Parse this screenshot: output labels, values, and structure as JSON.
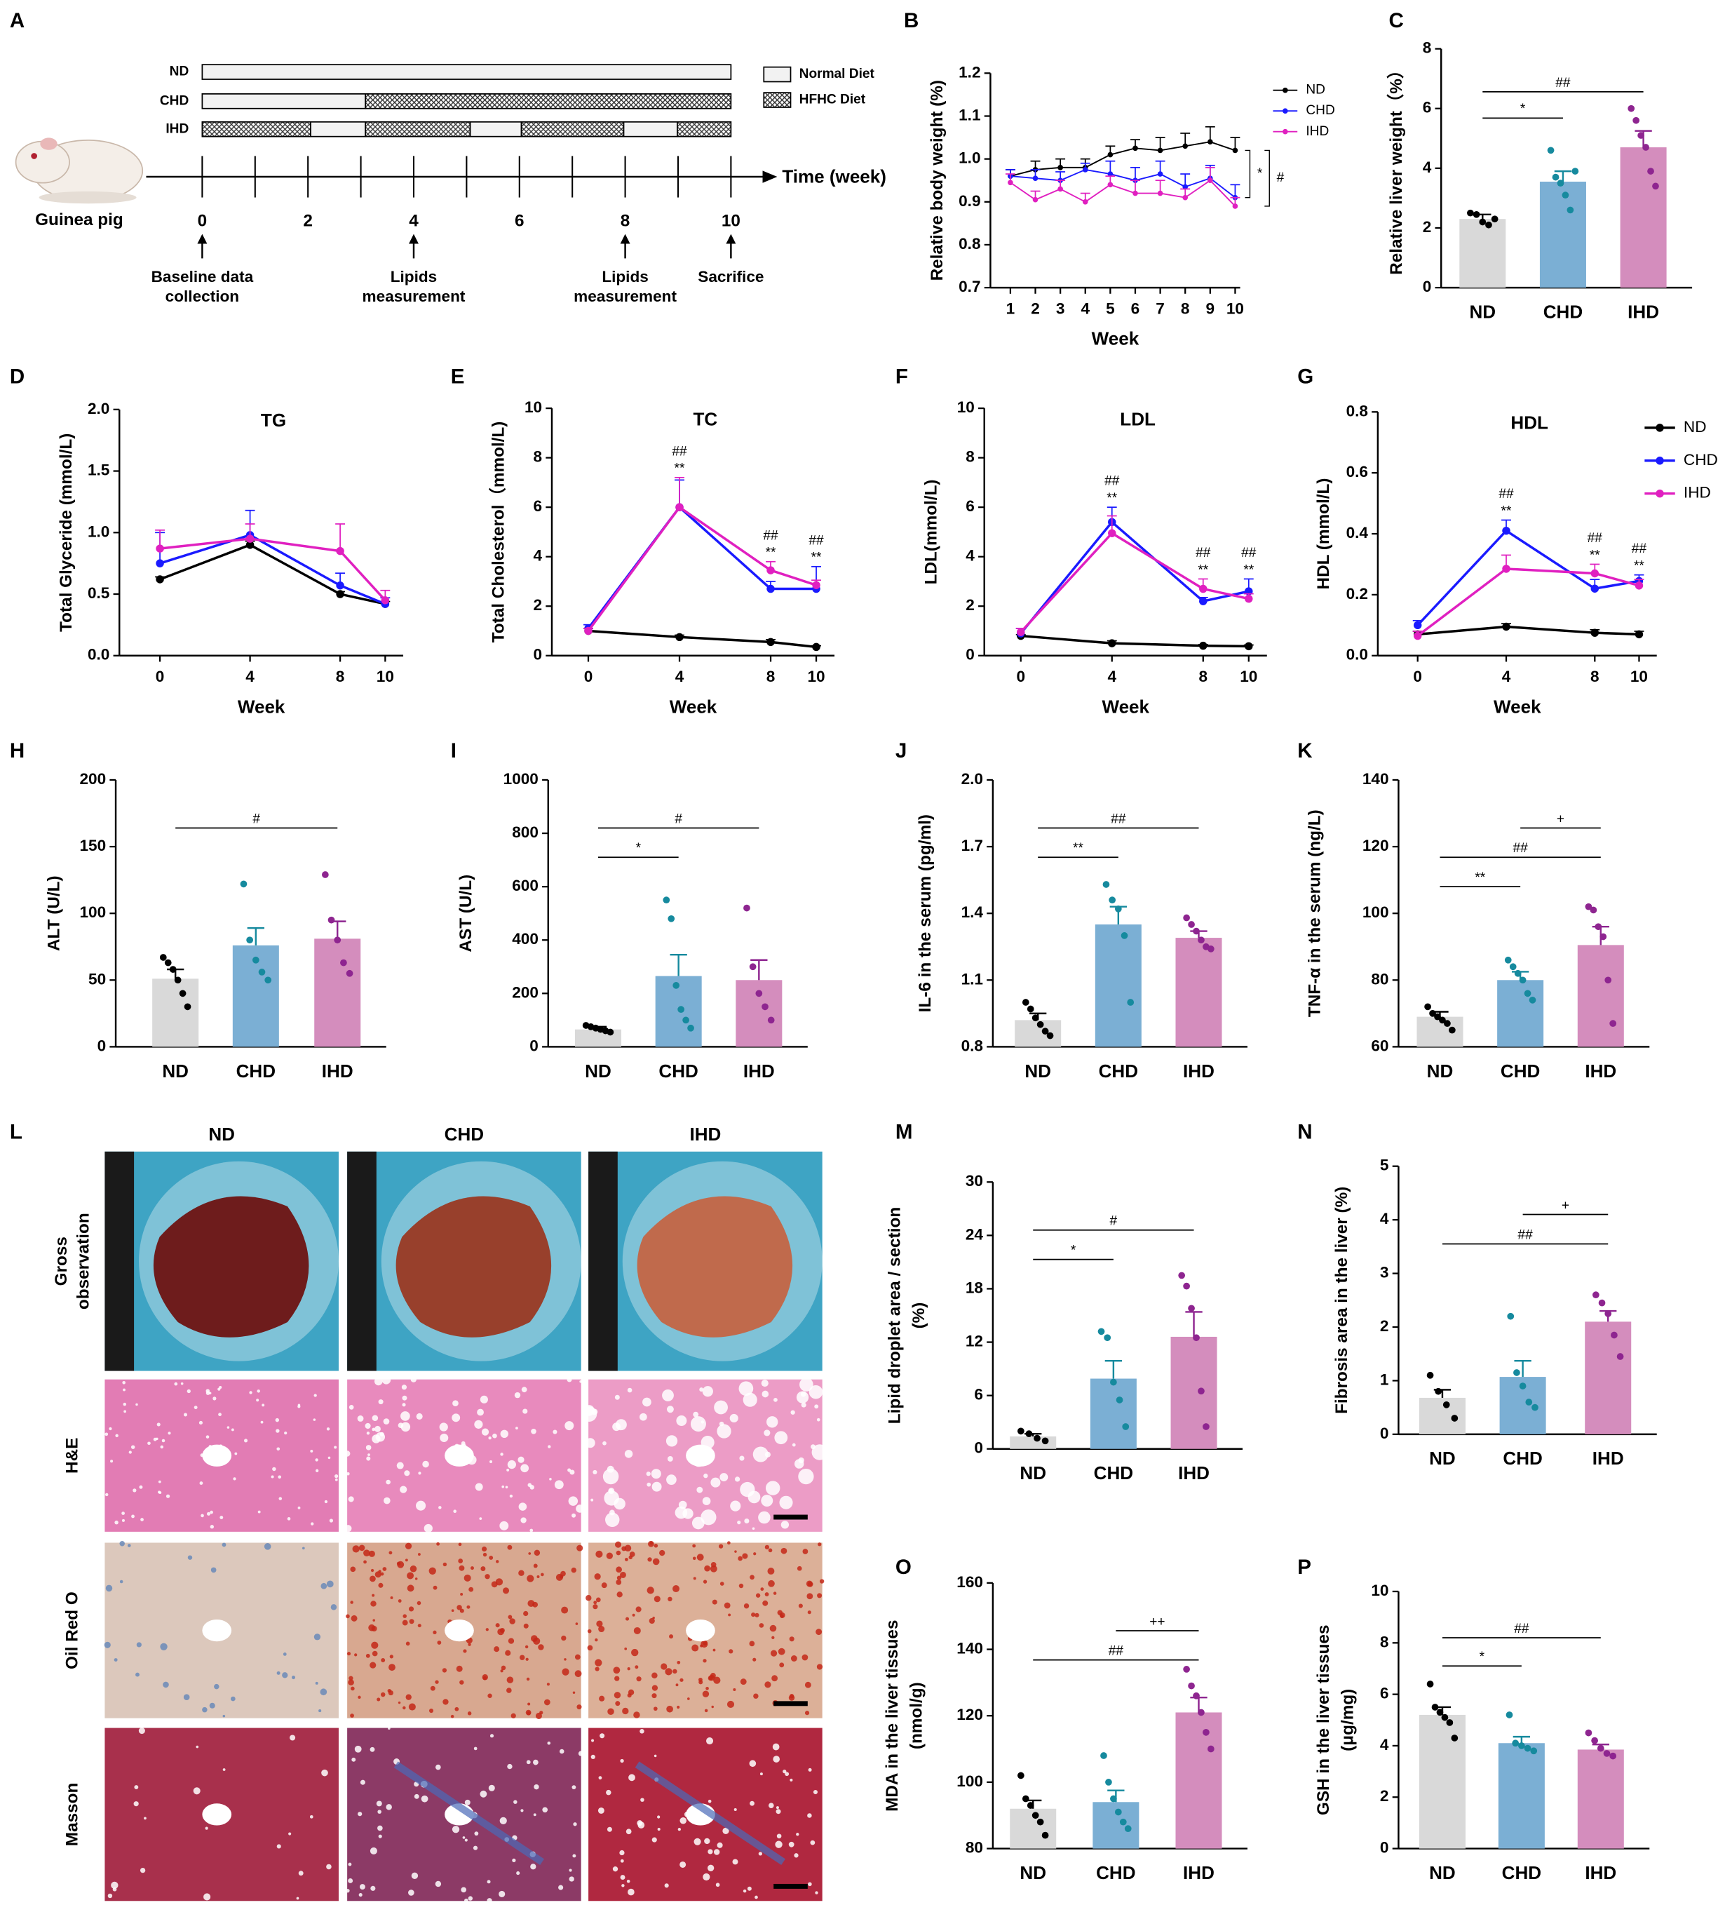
{
  "timeline": {
    "label": "A",
    "rows": [
      "ND",
      "CHD",
      "IHD"
    ],
    "legend": [
      "Normal Diet",
      "HFHC Diet"
    ],
    "axis_label": "Time (week)",
    "ticks": [
      0,
      2,
      4,
      6,
      8,
      10
    ],
    "events": [
      {
        "week": 0,
        "lines": [
          "Baseline data",
          "collection"
        ]
      },
      {
        "week": 4,
        "lines": [
          "Lipids",
          "measurement"
        ]
      },
      {
        "week": 8,
        "lines": [
          "Lipids",
          "measurement"
        ]
      },
      {
        "week": 10,
        "lines": [
          "Sacrifice"
        ]
      }
    ],
    "animal": "Guinea pig"
  },
  "histology": {
    "label": "L",
    "columns": [
      "ND",
      "CHD",
      "IHD"
    ],
    "rows": [
      [
        "Gross",
        "observation"
      ],
      [
        "H&E"
      ],
      [
        "Oil Red O"
      ],
      [
        "Masson"
      ]
    ]
  },
  "chart_data": [
    {
      "label": "B",
      "type": "line",
      "x": [
        1,
        2,
        3,
        4,
        5,
        6,
        7,
        8,
        9,
        10
      ],
      "xlim": [
        0.2,
        10.2
      ],
      "xticks": [
        1,
        2,
        3,
        4,
        5,
        6,
        7,
        8,
        9,
        10
      ],
      "ylim": [
        0.7,
        1.2
      ],
      "yticks": [
        0.7,
        0.8,
        0.9,
        {
          "value": 1,
          "label": "1.0"
        },
        1.1,
        1.2
      ],
      "xlabel": "Week",
      "ylabel": "Relative body weight (%)",
      "legend": "right",
      "side_marks": [
        "*",
        "#"
      ],
      "series": [
        {
          "name": "ND",
          "color": "#000000",
          "values": [
            0.96,
            0.975,
            0.98,
            0.98,
            1.01,
            1.025,
            1.02,
            1.03,
            1.04,
            1.02
          ],
          "errors": [
            0.015,
            0.02,
            0.02,
            0.02,
            0.02,
            0.02,
            0.03,
            0.03,
            0.035,
            0.03
          ]
        },
        {
          "name": "CHD",
          "color": "#1a1aff",
          "values": [
            0.96,
            0.955,
            0.95,
            0.975,
            0.965,
            0.95,
            0.965,
            0.935,
            0.955,
            0.91
          ],
          "errors": [
            0.015,
            0.02,
            0.02,
            0.015,
            0.03,
            0.03,
            0.03,
            0.03,
            0.03,
            0.03
          ]
        },
        {
          "name": "IHD",
          "color": "#e020c0",
          "values": [
            0.945,
            0.905,
            0.93,
            0.9,
            0.94,
            0.92,
            0.92,
            0.91,
            0.95,
            0.89
          ],
          "errors": [
            0.02,
            0.02,
            0.02,
            0.02,
            0.02,
            0.03,
            0.03,
            0.02,
            0.03,
            0.02
          ]
        }
      ]
    },
    {
      "label": "C",
      "type": "bar",
      "categories": [
        "ND",
        "CHD",
        "IHD"
      ],
      "values": [
        2.3,
        3.55,
        4.7
      ],
      "errors": [
        0.15,
        0.35,
        0.55
      ],
      "points": [
        [
          2.5,
          2.45,
          2.2,
          2.1,
          2.3
        ],
        [
          4.6,
          3.7,
          3.5,
          3.1,
          2.6,
          3.9
        ],
        [
          6.0,
          5.6,
          5.1,
          4.7,
          3.9,
          3.4
        ]
      ],
      "colors": [
        "#d9d9d9",
        "#7bafd4",
        "#d48dbd"
      ],
      "point_colors": [
        "#000000",
        "#168a9e",
        "#8e2590"
      ],
      "ylim": [
        0,
        8
      ],
      "yticks": [
        0,
        2,
        4,
        6,
        8
      ],
      "ylabel": "Relative liver weight（%）",
      "brackets": [
        {
          "from": 0,
          "to": 1,
          "label": "*"
        },
        {
          "from": 0,
          "to": 2,
          "label": "##"
        }
      ]
    },
    {
      "label": "D",
      "type": "line",
      "title": "TG",
      "x": [
        0,
        4,
        8,
        10
      ],
      "xlim": [
        -1.8,
        10.8
      ],
      "xticks": [
        0,
        4,
        8,
        10
      ],
      "ylim": [
        0,
        2
      ],
      "yticks": [
        {
          "value": 0,
          "label": "0.0"
        },
        0.5,
        {
          "value": 1,
          "label": "1.0"
        },
        1.5,
        {
          "value": 2,
          "label": "2.0"
        }
      ],
      "xlabel": "Week",
      "ylabel": "Total Glyceride (mmol/L)",
      "series": [
        {
          "name": "ND",
          "color": "#000000",
          "values": [
            0.62,
            0.9,
            0.5,
            0.42
          ],
          "errors": [
            0.02,
            0.03,
            0.02,
            0.02
          ]
        },
        {
          "name": "CHD",
          "color": "#1a1aff",
          "values": [
            0.75,
            0.98,
            0.57,
            0.42
          ],
          "errors": [
            0.25,
            0.2,
            0.1,
            0.05
          ]
        },
        {
          "name": "IHD",
          "color": "#e020c0",
          "values": [
            0.87,
            0.95,
            0.85,
            0.45
          ],
          "errors": [
            0.15,
            0.12,
            0.22,
            0.08
          ]
        }
      ]
    },
    {
      "label": "E",
      "type": "line",
      "title": "TC",
      "x": [
        0,
        4,
        8,
        10
      ],
      "xlim": [
        -1.6,
        10.8
      ],
      "xticks": [
        0,
        4,
        8,
        10
      ],
      "ylim": [
        0,
        10
      ],
      "yticks": [
        0,
        2,
        4,
        6,
        8,
        10
      ],
      "xlabel": "Week",
      "ylabel": "Total Cholesterol（mmol/L)",
      "annotations": [
        null,
        [
          "##",
          "**"
        ],
        [
          "##",
          "**"
        ],
        [
          "##",
          "**"
        ]
      ],
      "series": [
        {
          "name": "ND",
          "color": "#000000",
          "values": [
            1.0,
            0.75,
            0.55,
            0.35
          ],
          "errors": [
            0.1,
            0.08,
            0.1,
            0.05
          ]
        },
        {
          "name": "CHD",
          "color": "#1a1aff",
          "values": [
            1.1,
            6.0,
            2.7,
            2.7
          ],
          "errors": [
            0.15,
            1.1,
            0.3,
            0.9
          ]
        },
        {
          "name": "IHD",
          "color": "#e020c0",
          "values": [
            1.0,
            6.0,
            3.45,
            2.85
          ],
          "errors": [
            0.1,
            1.2,
            0.35,
            0.2
          ]
        }
      ]
    },
    {
      "label": "F",
      "type": "line",
      "title": "LDL",
      "x": [
        0,
        4,
        8,
        10
      ],
      "xlim": [
        -1.6,
        10.8
      ],
      "xticks": [
        0,
        4,
        8,
        10
      ],
      "ylim": [
        0,
        10
      ],
      "yticks": [
        0,
        2,
        4,
        6,
        8,
        10
      ],
      "xlabel": "Week",
      "ylabel": "LDL(mmol/L)",
      "annotations": [
        null,
        [
          "##",
          "**"
        ],
        [
          "##",
          "**"
        ],
        [
          "##",
          "**"
        ]
      ],
      "series": [
        {
          "name": "ND",
          "color": "#000000",
          "values": [
            0.8,
            0.5,
            0.4,
            0.38
          ],
          "errors": [
            0.05,
            0.1,
            0.05,
            0.05
          ]
        },
        {
          "name": "CHD",
          "color": "#1a1aff",
          "values": [
            0.9,
            5.4,
            2.2,
            2.6
          ],
          "errors": [
            0.2,
            0.6,
            0.15,
            0.5
          ]
        },
        {
          "name": "IHD",
          "color": "#e020c0",
          "values": [
            0.95,
            4.95,
            2.7,
            2.3
          ],
          "errors": [
            0.15,
            0.7,
            0.4,
            0.2
          ]
        }
      ]
    },
    {
      "label": "G",
      "type": "line",
      "title": "HDL",
      "x": [
        0,
        4,
        8,
        10
      ],
      "xlim": [
        -1.8,
        10.8
      ],
      "xticks": [
        0,
        4,
        8,
        10
      ],
      "ylim": [
        0,
        0.8
      ],
      "yticks": [
        {
          "value": 0,
          "label": "0.0"
        },
        0.2,
        0.4,
        0.6,
        0.8
      ],
      "xlabel": "Week",
      "ylabel": "HDL (mmol/L)",
      "legend": "right",
      "annotations": [
        null,
        [
          "##",
          "**"
        ],
        [
          "##",
          "**"
        ],
        [
          "##",
          "**"
        ]
      ],
      "series": [
        {
          "name": "ND",
          "color": "#000000",
          "values": [
            0.07,
            0.095,
            0.075,
            0.07
          ],
          "errors": [
            0.01,
            0.01,
            0.01,
            0.01
          ]
        },
        {
          "name": "CHD",
          "color": "#1a1aff",
          "values": [
            0.1,
            0.41,
            0.22,
            0.245
          ],
          "errors": [
            0.015,
            0.035,
            0.03,
            0.02
          ]
        },
        {
          "name": "IHD",
          "color": "#e020c0",
          "values": [
            0.065,
            0.285,
            0.27,
            0.23
          ],
          "errors": [
            0.015,
            0.045,
            0.03,
            0.02
          ]
        }
      ]
    },
    {
      "label": "H",
      "type": "bar",
      "categories": [
        "ND",
        "CHD",
        "IHD"
      ],
      "values": [
        51,
        76,
        81
      ],
      "errors": [
        7,
        13,
        13
      ],
      "points": [
        [
          67,
          63,
          58,
          50,
          40,
          30
        ],
        [
          122,
          80,
          65,
          56,
          50
        ],
        [
          129,
          95,
          80,
          63,
          55
        ]
      ],
      "colors": [
        "#d9d9d9",
        "#7bafd4",
        "#d48dbd"
      ],
      "point_colors": [
        "#000000",
        "#168a9e",
        "#8e2590"
      ],
      "ylim": [
        0,
        200
      ],
      "yticks": [
        0,
        50,
        100,
        150,
        200
      ],
      "ylabel": "ALT (U/L)",
      "brackets": [
        {
          "from": 0,
          "to": 2,
          "label": "#"
        }
      ]
    },
    {
      "label": "I",
      "type": "bar",
      "categories": [
        "ND",
        "CHD",
        "IHD"
      ],
      "values": [
        65,
        265,
        250
      ],
      "errors": [
        10,
        80,
        75
      ],
      "points": [
        [
          80,
          75,
          70,
          65,
          60,
          55
        ],
        [
          550,
          480,
          230,
          140,
          100,
          70
        ],
        [
          520,
          300,
          200,
          150,
          100
        ]
      ],
      "colors": [
        "#d9d9d9",
        "#7bafd4",
        "#d48dbd"
      ],
      "point_colors": [
        "#000000",
        "#168a9e",
        "#8e2590"
      ],
      "ylim": [
        0,
        1000
      ],
      "yticks": [
        0,
        200,
        400,
        600,
        800,
        1000
      ],
      "ylabel": "AST (U/L)",
      "brackets": [
        {
          "from": 0,
          "to": 1,
          "label": "*"
        },
        {
          "from": 0,
          "to": 2,
          "label": "#"
        }
      ]
    },
    {
      "label": "J",
      "type": "bar",
      "categories": [
        "ND",
        "CHD",
        "IHD"
      ],
      "values": [
        0.92,
        1.35,
        1.29
      ],
      "errors": [
        0.03,
        0.08,
        0.03
      ],
      "points": [
        [
          1.0,
          0.97,
          0.93,
          0.9,
          0.87,
          0.85
        ],
        [
          1.53,
          1.46,
          1.42,
          1.3,
          1.0
        ],
        [
          1.38,
          1.35,
          1.32,
          1.28,
          1.25,
          1.24
        ]
      ],
      "colors": [
        "#d9d9d9",
        "#7bafd4",
        "#d48dbd"
      ],
      "point_colors": [
        "#000000",
        "#168a9e",
        "#8e2590"
      ],
      "ylim": [
        0.8,
        2
      ],
      "yticks": [
        0.8,
        1.1,
        1.4,
        1.7,
        {
          "value": 2,
          "label": "2.0"
        }
      ],
      "ylabel": "IL-6 in the serum (pg/ml)",
      "brackets": [
        {
          "from": 0,
          "to": 1,
          "label": "**"
        },
        {
          "from": 0,
          "to": 2,
          "label": "##"
        }
      ]
    },
    {
      "label": "K",
      "type": "bar",
      "categories": [
        "ND",
        "CHD",
        "IHD"
      ],
      "values": [
        69,
        80,
        90.5
      ],
      "errors": [
        1.5,
        2.5,
        5.5
      ],
      "points": [
        [
          72,
          70,
          69,
          68,
          67,
          65
        ],
        [
          86,
          84,
          82,
          80,
          76,
          74
        ],
        [
          102,
          101,
          96,
          93,
          80,
          67
        ]
      ],
      "colors": [
        "#d9d9d9",
        "#7bafd4",
        "#d48dbd"
      ],
      "point_colors": [
        "#000000",
        "#168a9e",
        "#8e2590"
      ],
      "ylim": [
        60,
        140
      ],
      "yticks": [
        60,
        80,
        100,
        120,
        140
      ],
      "ylabel": "TNF-α in the serum (ng/L)",
      "brackets": [
        {
          "from": 0,
          "to": 1,
          "label": "**"
        },
        {
          "from": 0,
          "to": 2,
          "label": "##"
        },
        {
          "from": 1,
          "to": 2,
          "label": "+"
        }
      ]
    },
    {
      "label": "M",
      "type": "bar",
      "categories": [
        "ND",
        "CHD",
        "IHD"
      ],
      "values": [
        1.4,
        7.9,
        12.6
      ],
      "errors": [
        0.3,
        2,
        2.8
      ],
      "points": [
        [
          2.0,
          1.7,
          1.2,
          0.9
        ],
        [
          13.2,
          12.5,
          7.5,
          5.5,
          2.5
        ],
        [
          19.5,
          18.3,
          15.8,
          12.5,
          6.5,
          2.5
        ]
      ],
      "colors": [
        "#d9d9d9",
        "#7bafd4",
        "#d48dbd"
      ],
      "point_colors": [
        "#000000",
        "#168a9e",
        "#8e2590"
      ],
      "ylim": [
        0,
        30
      ],
      "yticks": [
        0,
        6,
        12,
        18,
        24,
        30
      ],
      "ylabel": [
        "Lipid droplet area / section",
        "(%)"
      ],
      "brackets": [
        {
          "from": 0,
          "to": 1,
          "label": "*"
        },
        {
          "from": 0,
          "to": 2,
          "label": "#"
        }
      ]
    },
    {
      "label": "N",
      "type": "bar",
      "categories": [
        "ND",
        "CHD",
        "IHD"
      ],
      "values": [
        0.68,
        1.07,
        2.1
      ],
      "errors": [
        0.15,
        0.3,
        0.2
      ],
      "points": [
        [
          1.1,
          0.8,
          0.55,
          0.3
        ],
        [
          2.2,
          1.15,
          0.9,
          0.6,
          0.5
        ],
        [
          2.6,
          2.45,
          2.25,
          1.85,
          1.45
        ]
      ],
      "colors": [
        "#d9d9d9",
        "#7bafd4",
        "#d48dbd"
      ],
      "point_colors": [
        "#000000",
        "#168a9e",
        "#8e2590"
      ],
      "ylim": [
        0,
        5
      ],
      "yticks": [
        0,
        1,
        2,
        3,
        4,
        5
      ],
      "ylabel": "Fibrosis area in the liver (%)",
      "brackets": [
        {
          "from": 0,
          "to": 2,
          "label": "##"
        },
        {
          "from": 1,
          "to": 2,
          "label": "+"
        }
      ]
    },
    {
      "label": "O",
      "type": "bar",
      "categories": [
        "ND",
        "CHD",
        "IHD"
      ],
      "values": [
        92,
        94,
        121
      ],
      "errors": [
        2.5,
        3.5,
        4.5
      ],
      "points": [
        [
          102,
          95,
          93,
          90,
          88,
          84
        ],
        [
          108,
          100,
          95,
          91,
          88,
          86
        ],
        [
          134,
          129,
          126,
          121,
          115,
          110
        ]
      ],
      "colors": [
        "#d9d9d9",
        "#7bafd4",
        "#d48dbd"
      ],
      "point_colors": [
        "#000000",
        "#168a9e",
        "#8e2590"
      ],
      "ylim": [
        80,
        160
      ],
      "yticks": [
        80,
        100,
        120,
        140,
        160
      ],
      "ylabel": [
        "MDA in the liver tissues",
        "(nmol/g)"
      ],
      "brackets": [
        {
          "from": 0,
          "to": 2,
          "label": "##"
        },
        {
          "from": 1,
          "to": 2,
          "label": "++"
        }
      ]
    },
    {
      "label": "P",
      "type": "bar",
      "categories": [
        "ND",
        "CHD",
        "IHD"
      ],
      "values": [
        5.2,
        4.1,
        3.85
      ],
      "errors": [
        0.3,
        0.25,
        0.2
      ],
      "points": [
        [
          6.4,
          5.5,
          5.3,
          5.1,
          4.9,
          4.3
        ],
        [
          5.2,
          4.1,
          4.0,
          3.9,
          3.8
        ],
        [
          4.5,
          4.2,
          3.9,
          3.7,
          3.6
        ]
      ],
      "colors": [
        "#d9d9d9",
        "#7bafd4",
        "#d48dbd"
      ],
      "point_colors": [
        "#000000",
        "#168a9e",
        "#8e2590"
      ],
      "ylim": [
        0,
        10
      ],
      "yticks": [
        0,
        2,
        4,
        6,
        8,
        10
      ],
      "ylabel": [
        "GSH in the liver tissues",
        "(μg/mg)"
      ],
      "brackets": [
        {
          "from": 0,
          "to": 1,
          "label": "*"
        },
        {
          "from": 0,
          "to": 2,
          "label": "##"
        }
      ]
    }
  ]
}
